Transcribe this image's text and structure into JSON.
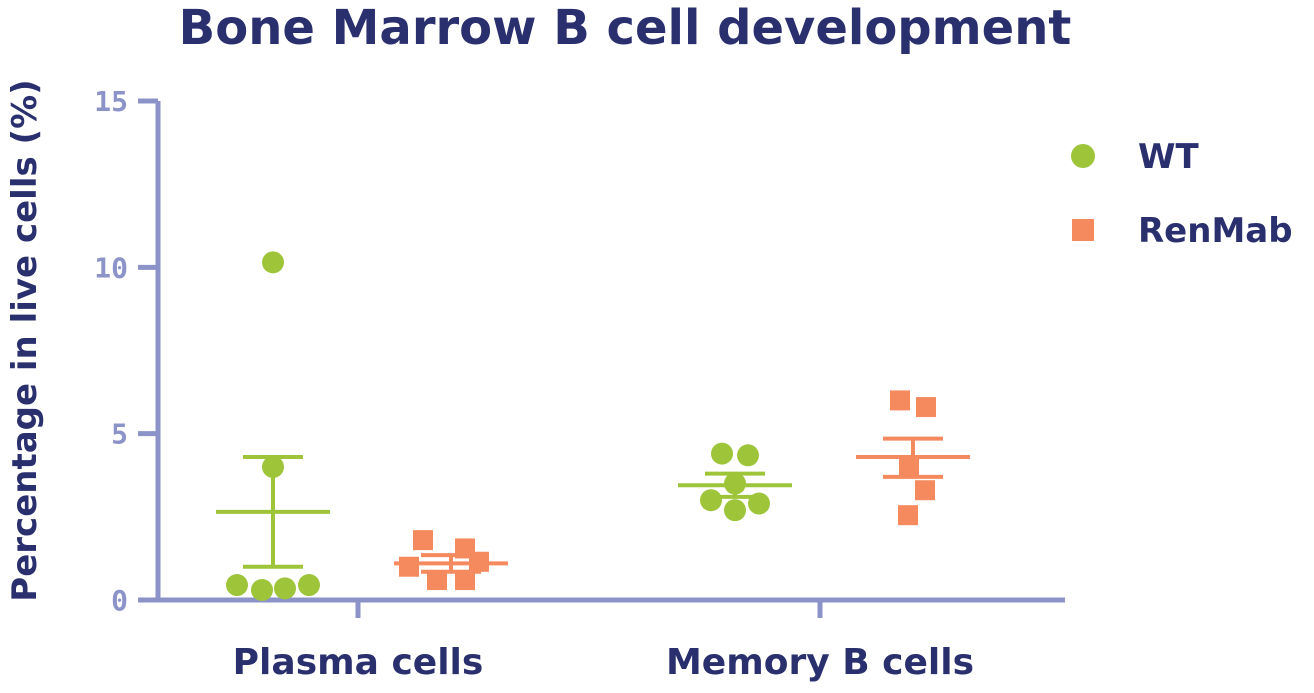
{
  "chart_data": {
    "type": "scatter",
    "title": "Bone Marrow B cell development",
    "ylabel": "Percentage in live cells (%)",
    "xlabel": "",
    "ylim": [
      0,
      15
    ],
    "yticks": [
      0,
      5,
      10,
      15
    ],
    "categories": [
      "Plasma cells",
      "Memory B cells"
    ],
    "legend_position": "right",
    "series": [
      {
        "name": "WT",
        "color": "#9ec53a",
        "marker": "circle",
        "points": [
          [
            10.15,
            4.0,
            0.45,
            0.3,
            0.35,
            0.45
          ],
          [
            4.4,
            4.35,
            3.5,
            3.0,
            2.7,
            2.9
          ]
        ],
        "mean": [
          2.65,
          3.45
        ],
        "sem_low": [
          1.0,
          3.1
        ],
        "sem_high": [
          4.3,
          3.8
        ]
      },
      {
        "name": "RenMab",
        "color": "#f58a5e",
        "marker": "square",
        "points": [
          [
            1.8,
            1.55,
            1.0,
            1.15,
            0.6,
            0.6
          ],
          [
            6.0,
            5.8,
            4.05,
            3.3,
            2.55
          ]
        ],
        "mean": [
          1.1,
          4.3
        ],
        "sem_low": [
          0.85,
          3.7
        ],
        "sem_high": [
          1.35,
          4.85
        ]
      }
    ]
  }
}
